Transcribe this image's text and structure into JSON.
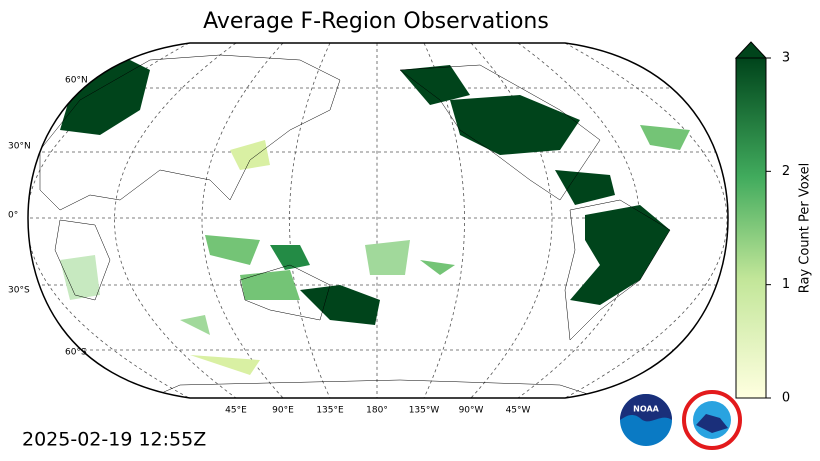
{
  "title": "Average F-Region Observations",
  "map": {
    "lat_labels": [
      "60°N",
      "30°N",
      "0°",
      "30°S",
      "60°S"
    ],
    "lon_labels": [
      "45°E",
      "90°E",
      "135°E",
      "180°",
      "135°W",
      "90°W",
      "45°W"
    ]
  },
  "colorbar": {
    "label": "Ray Count Per Voxel",
    "lim": [
      0,
      3
    ],
    "ticks": [
      0,
      1,
      2,
      3
    ],
    "colors": [
      "#ffffe0",
      "#00441b"
    ]
  },
  "timestamp": "2025-02-19 12:55Z",
  "logo": "NOAA"
}
